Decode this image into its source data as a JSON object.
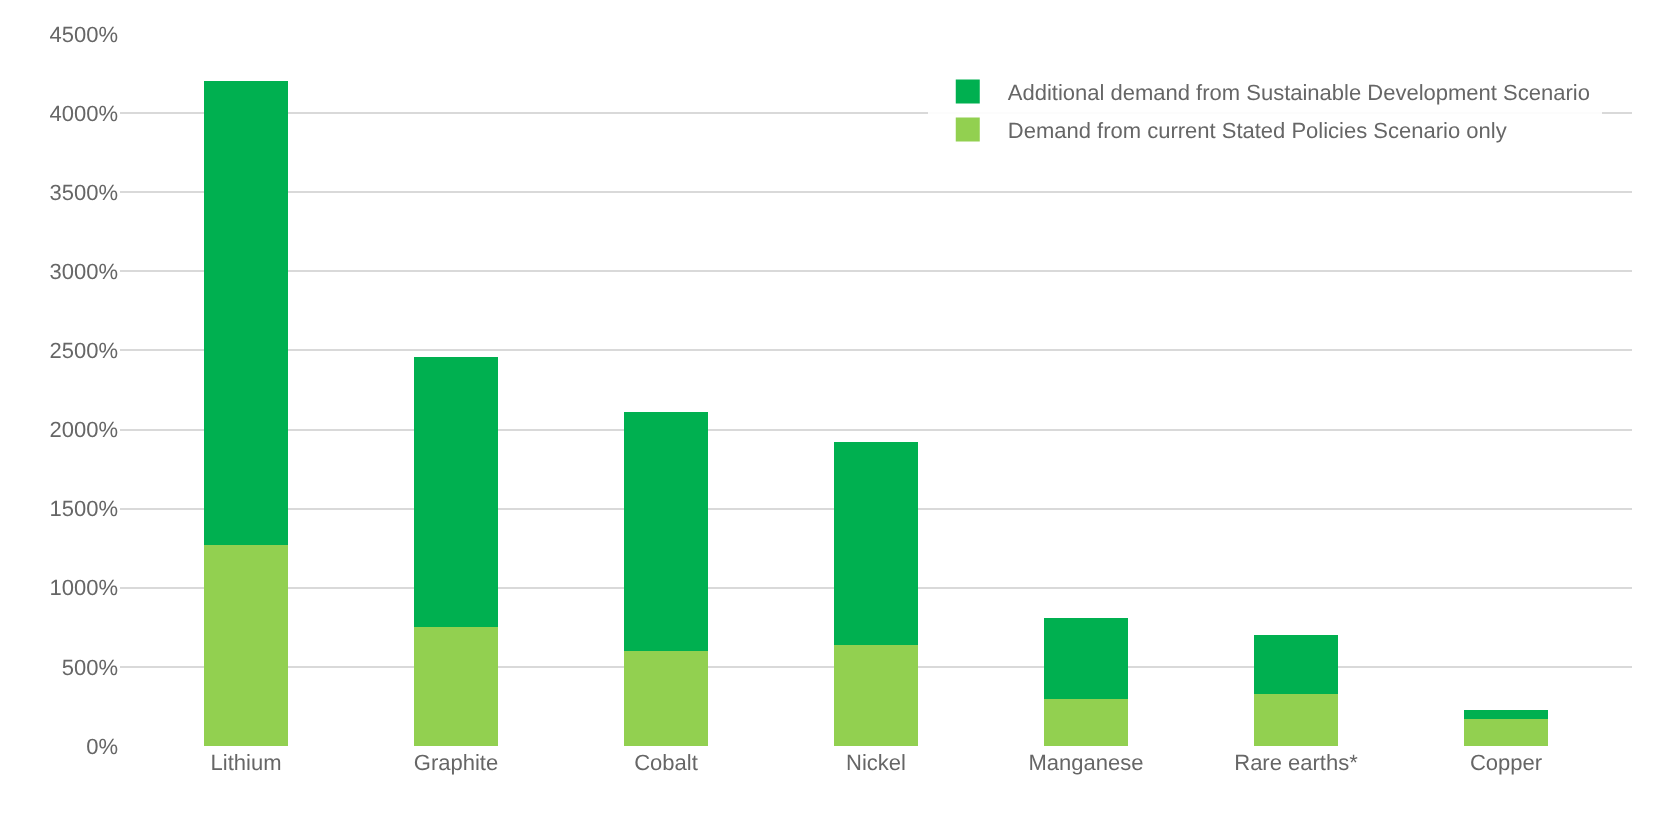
{
  "chart_data": {
    "type": "bar",
    "stacked": true,
    "categories": [
      "Lithium",
      "Graphite",
      "Cobalt",
      "Nickel",
      "Manganese",
      "Rare earths*",
      "Copper"
    ],
    "series": [
      {
        "name": "Demand from current Stated Policies Scenario only",
        "color": "#92d050",
        "values": [
          1270,
          750,
          600,
          640,
          300,
          330,
          170
        ]
      },
      {
        "name": "Additional demand from Sustainable Development Scenario",
        "color": "#00b050",
        "values": [
          2930,
          1710,
          1510,
          1280,
          510,
          370,
          60
        ]
      }
    ],
    "ylim": [
      0,
      4500
    ],
    "yticks": [
      {
        "value": 0,
        "label": "0%"
      },
      {
        "value": 500,
        "label": "500%"
      },
      {
        "value": 1000,
        "label": "1000%"
      },
      {
        "value": 1500,
        "label": "1500%"
      },
      {
        "value": 2000,
        "label": "2000%"
      },
      {
        "value": 2500,
        "label": "2500%"
      },
      {
        "value": 3000,
        "label": "3000%"
      },
      {
        "value": 3500,
        "label": "3500%"
      },
      {
        "value": 4000,
        "label": "4000%"
      },
      {
        "value": 4500,
        "label": "4500%"
      }
    ],
    "grid": "y",
    "legend": "top right"
  }
}
